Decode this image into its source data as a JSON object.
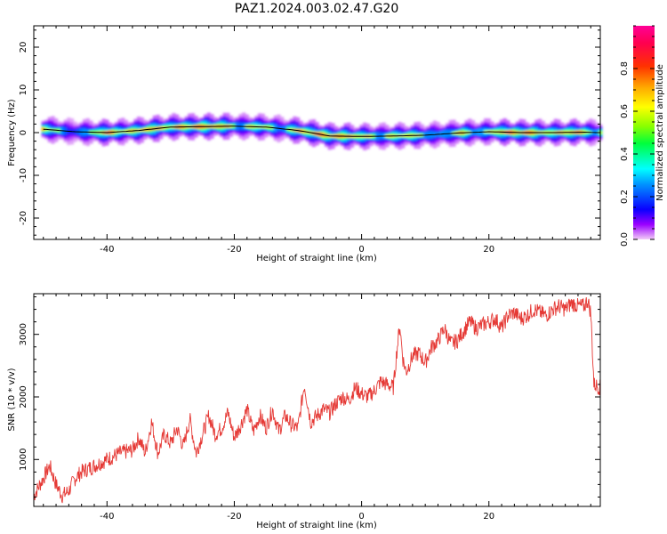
{
  "title": "PAZ1.2024.003.02.47.G20",
  "colors": {
    "snr_line": "#e53935",
    "frame": "#000000",
    "center_line": "#000000"
  },
  "chart_data": [
    {
      "type": "heatmap",
      "title": "",
      "xlabel": "Height of straight line (km)",
      "ylabel": "Frequency (Hz)",
      "xlim": [
        -51.5,
        37.5
      ],
      "ylim": [
        -25,
        25
      ],
      "xticks": [
        -40,
        -20,
        0,
        20
      ],
      "yticks": [
        -20,
        -10,
        0,
        10,
        20
      ],
      "grid": false,
      "colorbar": {
        "label": "Normalized spectral amplitude",
        "range": [
          0,
          1
        ],
        "ticks": [
          0.0,
          0.2,
          0.4,
          0.6,
          0.8
        ],
        "colormap": "rainbow (violet → blue → cyan → green → yellow → red → magenta)"
      },
      "ridge_frequency": {
        "x": [
          -50,
          -45,
          -40,
          -35,
          -30,
          -25,
          -20,
          -15,
          -10,
          -8,
          -5,
          0,
          5,
          10,
          15,
          20,
          25,
          30,
          35,
          37
        ],
        "y": [
          0.8,
          0.2,
          0.0,
          0.5,
          1.3,
          1.4,
          1.5,
          1.3,
          0.5,
          0.0,
          -0.8,
          -0.9,
          -0.8,
          -0.6,
          -0.1,
          0.2,
          0.0,
          0.0,
          0.1,
          0.0
        ]
      },
      "peak_amplitude": {
        "x": [
          -50,
          -46,
          -43,
          -40,
          -37,
          -34,
          -30,
          -26,
          -22,
          -19,
          -16,
          -13,
          -11,
          -8,
          -5,
          -1,
          3,
          6,
          9,
          12,
          16,
          19,
          22,
          26,
          30,
          33,
          37
        ],
        "v": [
          0.85,
          0.4,
          0.55,
          0.95,
          0.7,
          0.9,
          0.75,
          0.95,
          0.9,
          0.55,
          0.8,
          0.5,
          0.75,
          0.9,
          0.95,
          0.85,
          0.6,
          0.8,
          0.7,
          0.5,
          0.8,
          0.55,
          0.95,
          0.95,
          0.7,
          0.95,
          0.6
        ]
      }
    },
    {
      "type": "line",
      "title": "",
      "xlabel": "Height of straight line (km)",
      "ylabel": "SNR (10 * v/v)",
      "xlim": [
        -51.5,
        37.5
      ],
      "ylim": [
        250,
        3650
      ],
      "xticks": [
        -40,
        -20,
        0,
        20
      ],
      "yticks": [
        1000,
        2000,
        3000
      ],
      "grid": false,
      "series": [
        {
          "x": [
            -51.5,
            -50,
            -49,
            -48,
            -47,
            -46,
            -45,
            -44,
            -42,
            -40,
            -38,
            -36,
            -35,
            -34,
            -33,
            -32,
            -31,
            -30,
            -29,
            -28,
            -27,
            -26,
            -25,
            -24,
            -23,
            -22,
            -21,
            -20,
            -19,
            -18,
            -17,
            -16,
            -15,
            -14,
            -13,
            -12,
            -11,
            -10,
            -9,
            -8,
            -7,
            -6,
            -5,
            -4,
            -3,
            -2,
            -1,
            0,
            1,
            2,
            3,
            4,
            5,
            5.5,
            6,
            6.5,
            7,
            8,
            9,
            10,
            11,
            12,
            12.5,
            13,
            14,
            15,
            16,
            17,
            18,
            19,
            20,
            21,
            22,
            23,
            24,
            25,
            26,
            27,
            28,
            29,
            30,
            31,
            32,
            33,
            34,
            35,
            35.5,
            36,
            36.5,
            37.5
          ],
          "y": [
            420,
            700,
            900,
            600,
            420,
            500,
            700,
            800,
            900,
            1000,
            1100,
            1150,
            1350,
            1100,
            1600,
            1100,
            1400,
            1250,
            1500,
            1200,
            1650,
            1100,
            1400,
            1700,
            1400,
            1500,
            1750,
            1350,
            1550,
            1800,
            1450,
            1700,
            1500,
            1800,
            1450,
            1700,
            1550,
            1500,
            2200,
            1600,
            1700,
            1800,
            1750,
            1900,
            2000,
            1950,
            2150,
            2050,
            2000,
            2100,
            2250,
            2200,
            2150,
            2700,
            3150,
            2600,
            2400,
            2650,
            2700,
            2550,
            2800,
            2900,
            3000,
            3100,
            2850,
            2900,
            3050,
            3200,
            3100,
            3150,
            3200,
            3250,
            3100,
            3300,
            3350,
            3250,
            3300,
            3400,
            3350,
            3300,
            3400,
            3450,
            3400,
            3500,
            3450,
            3450,
            3550,
            3350,
            2200,
            2150
          ]
        }
      ]
    }
  ]
}
